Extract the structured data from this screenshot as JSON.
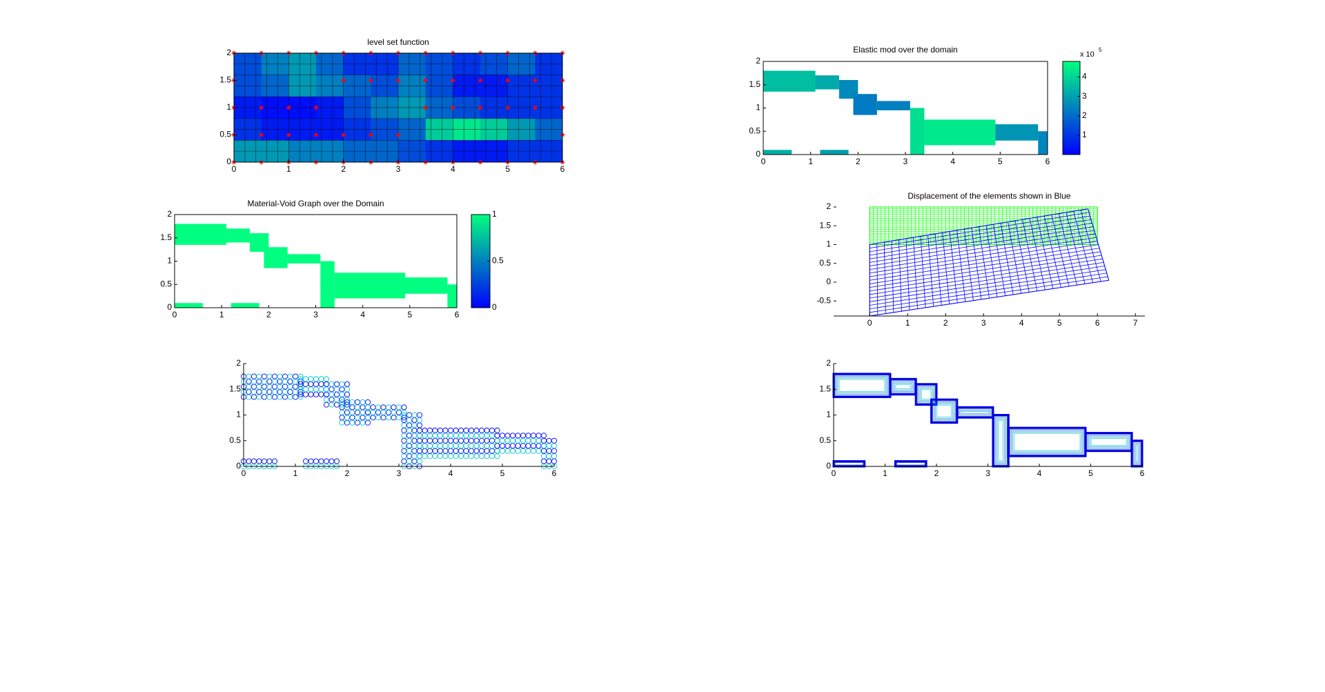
{
  "chart_data": [
    {
      "type": "heatmap",
      "title": "level set function",
      "x_edges": [
        0,
        0.5,
        1,
        1.5,
        2,
        2.5,
        3,
        3.5,
        4,
        4.5,
        5,
        5.5,
        6
      ],
      "y_edges": [
        2,
        1.6,
        1.2,
        0.8,
        0.4,
        0
      ],
      "z": [
        [
          0.3,
          0.5,
          0.6,
          0.4,
          0.2,
          0.2,
          0.4,
          0.3,
          0.2,
          0.3,
          0.4,
          0.2
        ],
        [
          0.3,
          0.4,
          0.6,
          0.5,
          0.4,
          0.3,
          0.5,
          0.3,
          0.1,
          0.1,
          0.2,
          0.2
        ],
        [
          0.1,
          0.05,
          0.05,
          0.1,
          0.3,
          0.5,
          0.6,
          0.4,
          0.3,
          0.2,
          0.2,
          0.2
        ],
        [
          0.2,
          0.1,
          0.1,
          0.1,
          0.2,
          0.3,
          0.4,
          0.8,
          0.9,
          0.8,
          0.6,
          0.4
        ],
        [
          0.6,
          0.6,
          0.5,
          0.5,
          0.4,
          0.4,
          0.3,
          0.2,
          0.1,
          0.1,
          0.2,
          0.2
        ]
      ],
      "points": {
        "color": "#ff0000",
        "x": [
          0,
          0.5,
          1,
          1.5,
          2,
          2.5,
          3,
          3.5,
          4,
          4.5,
          5,
          5.5,
          6,
          0,
          2,
          2.5,
          3,
          3.5,
          4,
          4.5,
          5,
          5.5,
          6,
          0,
          0.5,
          1,
          1.5,
          3.5,
          4,
          4.5,
          5,
          5.5,
          6,
          0,
          0.5,
          1,
          1.5,
          2,
          2.5,
          3,
          6,
          0,
          0.5,
          1,
          1.5,
          2,
          2.5,
          3,
          3.5,
          4,
          4.5,
          5,
          5.5,
          6
        ],
        "y": [
          2,
          2,
          2,
          2,
          2,
          2,
          2,
          2,
          2,
          2,
          2,
          2,
          2,
          1.5,
          1.5,
          1.5,
          1.5,
          1.5,
          1.5,
          1.5,
          1.5,
          1.5,
          1.5,
          1,
          1,
          1,
          1,
          1,
          1,
          1,
          1,
          1,
          1,
          0.5,
          0.5,
          0.5,
          0.5,
          0.5,
          0.5,
          0.5,
          0.5,
          0,
          0,
          0,
          0,
          0,
          0,
          0,
          0,
          0,
          0,
          0,
          0,
          0
        ]
      },
      "clim": [
        0,
        1
      ],
      "colormap": [
        "#0000ff",
        "#00ff80"
      ],
      "mesh": true,
      "box": true,
      "xlim": [
        0,
        6
      ],
      "ylim": [
        0,
        2
      ],
      "xticks": [
        0,
        1,
        2,
        3,
        4,
        5,
        6
      ],
      "yticks": [
        0,
        0.5,
        1,
        1.5,
        2
      ]
    },
    {
      "type": "regions",
      "title": "Elastic mod over the domain",
      "regions": [
        {
          "x": [
            0,
            1.1
          ],
          "y": [
            1.35,
            1.8
          ],
          "value": 360000
        },
        {
          "x": [
            1.1,
            1.6
          ],
          "y": [
            1.4,
            1.7
          ],
          "value": 320000
        },
        {
          "x": [
            1.6,
            2.0
          ],
          "y": [
            1.2,
            1.6
          ],
          "value": 260000
        },
        {
          "x": [
            1.9,
            2.4
          ],
          "y": [
            0.85,
            1.3
          ],
          "value": 230000
        },
        {
          "x": [
            2.4,
            3.1
          ],
          "y": [
            0.95,
            1.15
          ],
          "value": 240000
        },
        {
          "x": [
            3.1,
            3.4
          ],
          "y": [
            0,
            1.0
          ],
          "value": 420000
        },
        {
          "x": [
            3.4,
            4.9
          ],
          "y": [
            0.2,
            0.75
          ],
          "value": 440000
        },
        {
          "x": [
            4.9,
            5.8
          ],
          "y": [
            0.3,
            0.65
          ],
          "value": 280000
        },
        {
          "x": [
            5.8,
            6
          ],
          "y": [
            0,
            0.5
          ],
          "value": 250000
        },
        {
          "x": [
            0,
            0.6
          ],
          "y": [
            0,
            0.1
          ],
          "value": 330000
        },
        {
          "x": [
            1.2,
            1.8
          ],
          "y": [
            0,
            0.1
          ],
          "value": 300000
        }
      ],
      "clim": [
        0,
        480000
      ],
      "colormap": [
        "#0000ff",
        "#00ff80"
      ],
      "box": true,
      "cticks": [
        {
          "value": 100000,
          "label": "1"
        },
        {
          "value": 200000,
          "label": "2"
        },
        {
          "value": 300000,
          "label": "3"
        },
        {
          "value": 400000,
          "label": "4"
        }
      ],
      "c_multiplier": "x 10",
      "c_exponent": "5",
      "xlim": [
        0,
        6
      ],
      "ylim": [
        0,
        2
      ],
      "xticks": [
        0,
        1,
        2,
        3,
        4,
        5,
        6
      ],
      "yticks": [
        0,
        0.5,
        1,
        1.5,
        2
      ]
    },
    {
      "type": "regions",
      "title": "Material-Void Graph over the Domain",
      "regions": [
        {
          "x": [
            0,
            1.1
          ],
          "y": [
            1.35,
            1.8
          ],
          "value": 1
        },
        {
          "x": [
            1.1,
            1.6
          ],
          "y": [
            1.4,
            1.7
          ],
          "value": 1
        },
        {
          "x": [
            1.6,
            2.0
          ],
          "y": [
            1.2,
            1.6
          ],
          "value": 1
        },
        {
          "x": [
            1.9,
            2.4
          ],
          "y": [
            0.85,
            1.3
          ],
          "value": 1
        },
        {
          "x": [
            2.4,
            3.1
          ],
          "y": [
            0.95,
            1.15
          ],
          "value": 1
        },
        {
          "x": [
            3.1,
            3.4
          ],
          "y": [
            0,
            1.0
          ],
          "value": 1
        },
        {
          "x": [
            3.4,
            4.9
          ],
          "y": [
            0.2,
            0.75
          ],
          "value": 1
        },
        {
          "x": [
            4.9,
            5.8
          ],
          "y": [
            0.3,
            0.65
          ],
          "value": 1
        },
        {
          "x": [
            5.8,
            6
          ],
          "y": [
            0,
            0.5
          ],
          "value": 1
        },
        {
          "x": [
            0,
            0.6
          ],
          "y": [
            0,
            0.1
          ],
          "value": 1
        },
        {
          "x": [
            1.2,
            1.8
          ],
          "y": [
            0,
            0.1
          ],
          "value": 1
        }
      ],
      "clim": [
        0,
        1
      ],
      "colormap": [
        "#0000ff",
        "#00ff80"
      ],
      "box": true,
      "cticks": [
        0,
        0.5,
        1
      ],
      "xlim": [
        0,
        6
      ],
      "ylim": [
        0,
        2
      ],
      "xticks": [
        0,
        1,
        2,
        3,
        4,
        5,
        6
      ],
      "yticks": [
        0,
        0.5,
        1,
        1.5,
        2
      ]
    },
    {
      "type": "mesh",
      "title": "Displacement of the elements shown in Blue",
      "original": {
        "x": [
          0,
          6,
          6,
          0
        ],
        "y": [
          1,
          1,
          2,
          2
        ],
        "color": "#00ff00"
      },
      "deformed": {
        "x": [
          0,
          6.3,
          5.75,
          0
        ],
        "y": [
          -0.9,
          0.05,
          1.95,
          1
        ],
        "color": "#0000ff"
      },
      "box": false,
      "xlim": [
        -0.95,
        7.25
      ],
      "ylim": [
        -0.9,
        2
      ],
      "xticks": [
        0,
        1,
        2,
        3,
        4,
        5,
        6,
        7
      ],
      "yticks": [
        -0.5,
        0,
        0.5,
        1,
        1.5,
        2
      ]
    },
    {
      "type": "scatter",
      "regions": [
        {
          "x": [
            0,
            1.1
          ],
          "y": [
            1.35,
            1.8
          ]
        },
        {
          "x": [
            1.1,
            1.6
          ],
          "y": [
            1.4,
            1.7
          ]
        },
        {
          "x": [
            1.6,
            2.0
          ],
          "y": [
            1.2,
            1.6
          ]
        },
        {
          "x": [
            1.9,
            2.4
          ],
          "y": [
            0.85,
            1.3
          ]
        },
        {
          "x": [
            2.4,
            3.1
          ],
          "y": [
            0.95,
            1.15
          ]
        },
        {
          "x": [
            3.1,
            3.4
          ],
          "y": [
            0,
            1.0
          ]
        },
        {
          "x": [
            3.4,
            4.9
          ],
          "y": [
            0.2,
            0.75
          ]
        },
        {
          "x": [
            4.9,
            5.8
          ],
          "y": [
            0.3,
            0.65
          ]
        },
        {
          "x": [
            5.8,
            6
          ],
          "y": [
            0,
            0.5
          ]
        },
        {
          "x": [
            0,
            0.6
          ],
          "y": [
            0,
            0.1
          ]
        },
        {
          "x": [
            1.2,
            1.8
          ],
          "y": [
            0,
            0.1
          ]
        }
      ],
      "colors": [
        "#0000ff",
        "#00c8c8"
      ],
      "box": false,
      "xlim": [
        0,
        6
      ],
      "ylim": [
        0,
        2
      ],
      "xticks": [
        0,
        1,
        2,
        3,
        4,
        5,
        6
      ],
      "yticks": [
        0,
        0.5,
        1,
        1.5,
        2
      ]
    },
    {
      "type": "contour",
      "regions": [
        {
          "x": [
            0,
            1.1
          ],
          "y": [
            1.35,
            1.8
          ]
        },
        {
          "x": [
            1.1,
            1.6
          ],
          "y": [
            1.4,
            1.7
          ]
        },
        {
          "x": [
            1.6,
            2.0
          ],
          "y": [
            1.2,
            1.6
          ]
        },
        {
          "x": [
            1.9,
            2.4
          ],
          "y": [
            0.85,
            1.3
          ]
        },
        {
          "x": [
            2.4,
            3.1
          ],
          "y": [
            0.95,
            1.15
          ]
        },
        {
          "x": [
            3.1,
            3.4
          ],
          "y": [
            0,
            1.0
          ]
        },
        {
          "x": [
            3.4,
            4.9
          ],
          "y": [
            0.2,
            0.75
          ]
        },
        {
          "x": [
            4.9,
            5.8
          ],
          "y": [
            0.3,
            0.65
          ]
        },
        {
          "x": [
            5.8,
            6
          ],
          "y": [
            0,
            0.5
          ]
        },
        {
          "x": [
            0,
            0.6
          ],
          "y": [
            0,
            0.1
          ]
        },
        {
          "x": [
            1.2,
            1.8
          ],
          "y": [
            0,
            0.1
          ]
        }
      ],
      "colors": [
        "#0000e0",
        "#00c8c8"
      ],
      "box": false,
      "xlim": [
        0,
        6
      ],
      "ylim": [
        0,
        2
      ],
      "xticks": [
        0,
        1,
        2,
        3,
        4,
        5,
        6
      ],
      "yticks": [
        0,
        0.5,
        1,
        1.5,
        2
      ]
    }
  ]
}
